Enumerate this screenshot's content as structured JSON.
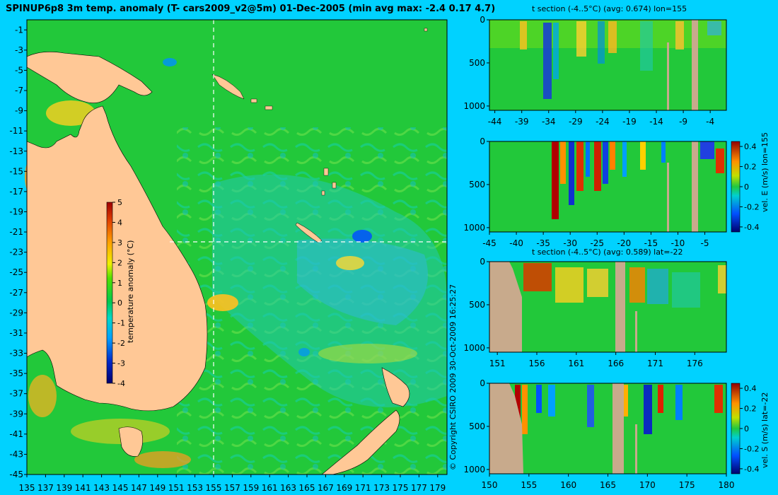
{
  "colors": {
    "background": "#00d2ff",
    "land": "#ffc896",
    "section_land": "#c8aa8c",
    "sea_base": "#22c83a",
    "warm": "#ff8000",
    "hot": "#d00000",
    "cold": "#0078ff",
    "cyan": "#00c8c8"
  },
  "map": {
    "title": "SPINUP6p8 3m temp. anomaly (T- cars2009_v2@5m) 01-Dec-2005 (min avg max: -2.4 0.17 4.7)",
    "copyright": "© Copyright CSIRO 2009   30-Oct-2009 16:25:27",
    "colorbar_label": "temperature anomaly (°C)",
    "colorbar_ticks": [
      "5",
      "4",
      "3",
      "2",
      "1",
      "0",
      "-1",
      "-2",
      "-3",
      "-4"
    ]
  },
  "panels": {
    "p1": {
      "title": "t section (-4..5°C) (avg: 0.674) lon=155",
      "colorbar_label": ""
    },
    "p2": {
      "title": "",
      "colorbar_label": "vel. E (m/s) lon=155"
    },
    "p3": {
      "title": "t section (-4..5°C) (avg: 0.589) lat=-22",
      "colorbar_label": ""
    },
    "p4": {
      "title": "",
      "colorbar_label": "vel. S (m/s) lat=-22"
    }
  },
  "chart_data": [
    {
      "type": "heatmap",
      "title": "SPINUP6p8 3m temp. anomaly (T- cars2009_v2@5m) 01-Dec-2005 (min avg max: -2.4 0.17 4.7)",
      "x_ticks": [
        135,
        137,
        139,
        141,
        143,
        145,
        147,
        149,
        151,
        153,
        155,
        157,
        159,
        161,
        163,
        165,
        167,
        169,
        171,
        173,
        175,
        177,
        179
      ],
      "y_ticks": [
        -1,
        -3,
        -5,
        -7,
        -9,
        -11,
        -13,
        -15,
        -17,
        -19,
        -21,
        -23,
        -25,
        -27,
        -29,
        -31,
        -33,
        -35,
        -37,
        -39,
        -41,
        -43,
        -45
      ],
      "xlim": [
        135,
        180
      ],
      "ylim": [
        -45,
        0
      ],
      "colorbar": {
        "label": "temperature anomaly (°C)",
        "range": [
          -4,
          5
        ],
        "ticks": [
          5,
          4,
          3,
          2,
          1,
          0,
          -1,
          -2,
          -3,
          -4
        ]
      },
      "crosshair": {
        "lon": 155,
        "lat": -22
      },
      "summary": {
        "min": -2.4,
        "avg": 0.17,
        "max": 4.7
      }
    },
    {
      "type": "heatmap",
      "title": "t section (-4..5°C) (avg: 0.674) lon=155",
      "x_ticks": [
        -44,
        -39,
        -34,
        -29,
        -24,
        -19,
        -14,
        -9,
        -4
      ],
      "y_ticks": [
        0,
        500,
        1000
      ],
      "xlim": [
        -45,
        -1
      ],
      "ylim": [
        1050,
        0
      ]
    },
    {
      "type": "heatmap",
      "x_ticks": [
        -45,
        -40,
        -35,
        -30,
        -25,
        -20,
        -15,
        -10,
        -5
      ],
      "y_ticks": [
        0,
        500,
        1000
      ],
      "xlim": [
        -45,
        -1
      ],
      "ylim": [
        1050,
        0
      ],
      "colorbar": {
        "label": "vel. E (m/s) lon=155",
        "ticks": [
          "0.4",
          "0.2",
          "0",
          "-0.2",
          "-0.4"
        ]
      }
    },
    {
      "type": "heatmap",
      "title": "t section (-4..5°C) (avg: 0.589) lat=-22",
      "x_ticks": [
        151,
        156,
        161,
        166,
        171,
        176
      ],
      "y_ticks": [
        0,
        500,
        1000
      ],
      "xlim": [
        150,
        180
      ],
      "ylim": [
        1050,
        0
      ]
    },
    {
      "type": "heatmap",
      "x_ticks": [
        150,
        155,
        160,
        165,
        170,
        175,
        180
      ],
      "y_ticks": [
        0,
        500,
        1000
      ],
      "xlim": [
        150,
        180
      ],
      "ylim": [
        1050,
        0
      ],
      "colorbar": {
        "label": "vel. S (m/s) lat=-22",
        "ticks": [
          "0.4",
          "0.2",
          "0",
          "-0.2",
          "-0.4"
        ]
      }
    }
  ]
}
